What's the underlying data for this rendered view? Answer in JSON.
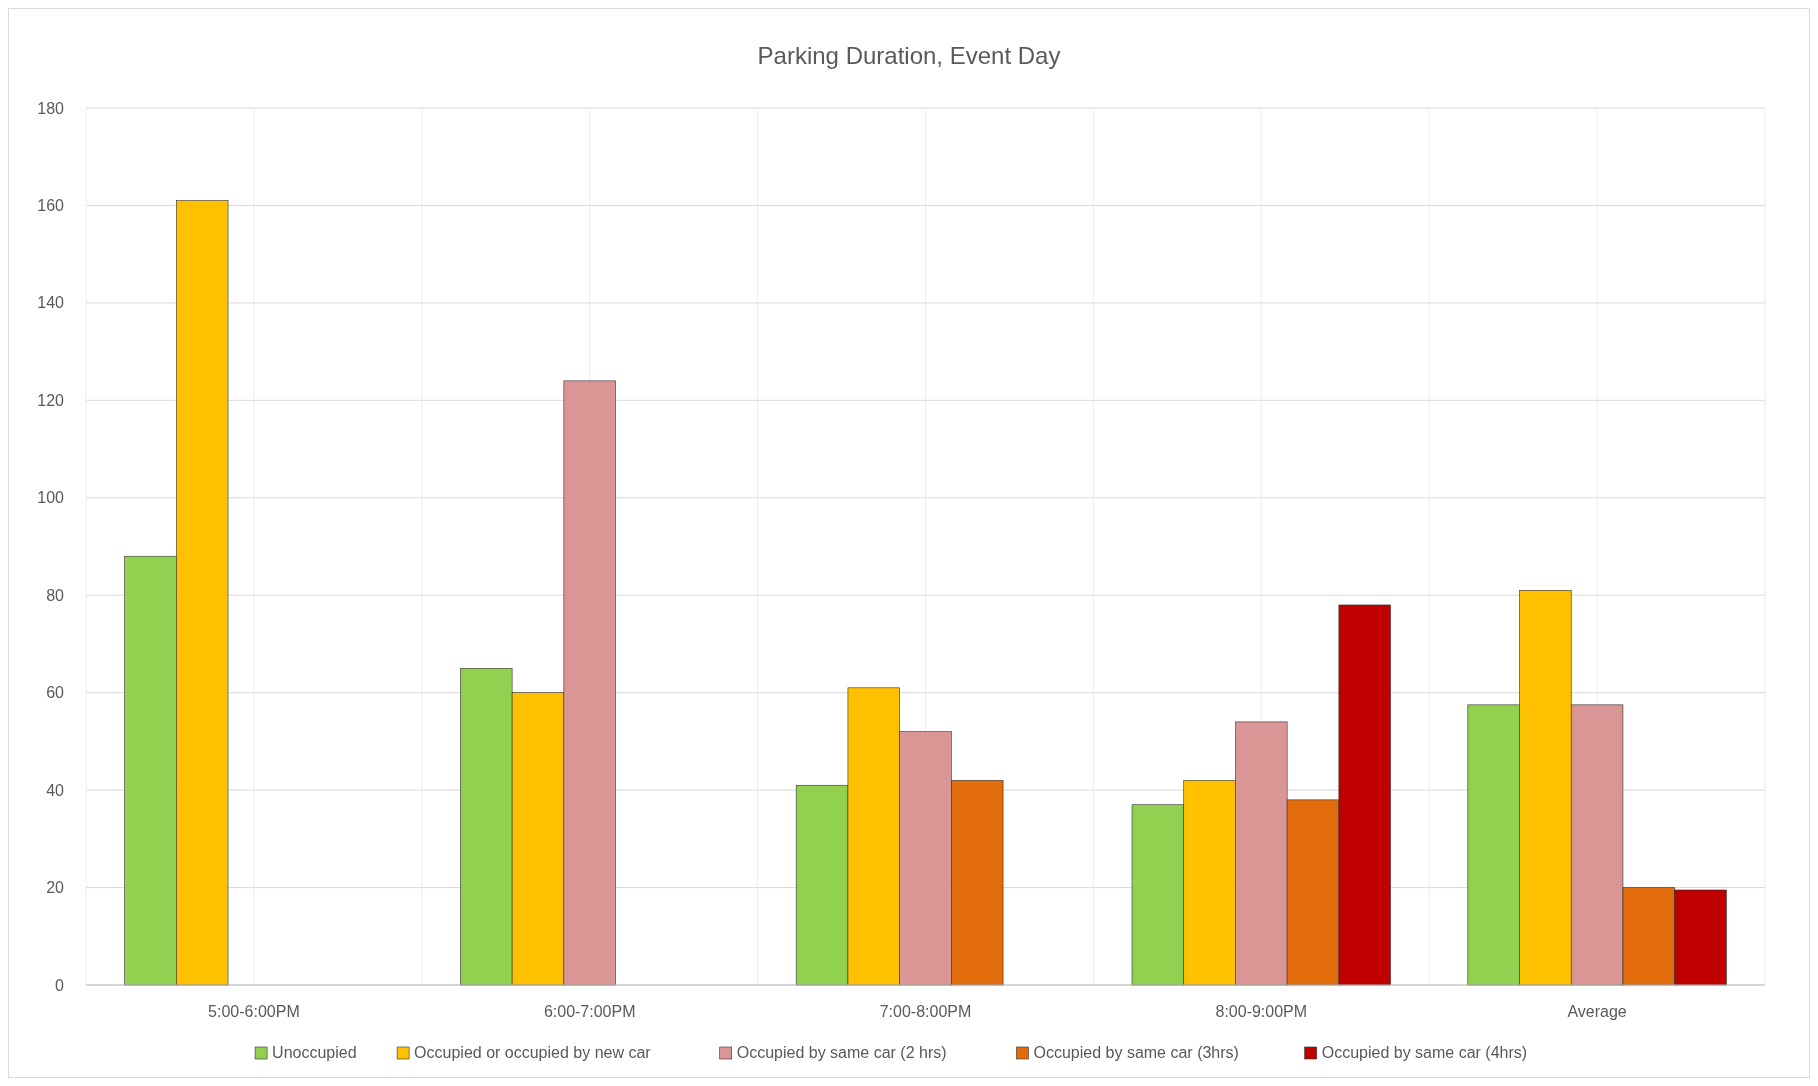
{
  "chart_data": {
    "type": "bar",
    "title": "Parking Duration, Event Day",
    "categories": [
      "5:00-6:00PM",
      "6:00-7:00PM",
      "7:00-8:00PM",
      "8:00-9:00PM",
      "Average"
    ],
    "series": [
      {
        "name": "Unoccupied",
        "color": "#92d050",
        "values": [
          88,
          65,
          41,
          37,
          57.5
        ]
      },
      {
        "name": "Occupied or occupied by new car",
        "color": "#ffc000",
        "values": [
          161,
          60,
          61,
          42,
          81
        ]
      },
      {
        "name": "Occupied by same car (2 hrs)",
        "color": "#da9694",
        "values": [
          null,
          124,
          52,
          54,
          57.5
        ]
      },
      {
        "name": "Occupied by same car (3hrs)",
        "color": "#e26b0a",
        "values": [
          null,
          null,
          42,
          38,
          20
        ]
      },
      {
        "name": "Occupied by same car (4hrs)",
        "color": "#c00000",
        "values": [
          null,
          null,
          null,
          78,
          19.5
        ]
      }
    ],
    "ylim": [
      0,
      180
    ],
    "yticks": [
      0,
      20,
      40,
      60,
      80,
      100,
      120,
      140,
      160,
      180
    ],
    "grid": true,
    "legend": "bottom"
  }
}
